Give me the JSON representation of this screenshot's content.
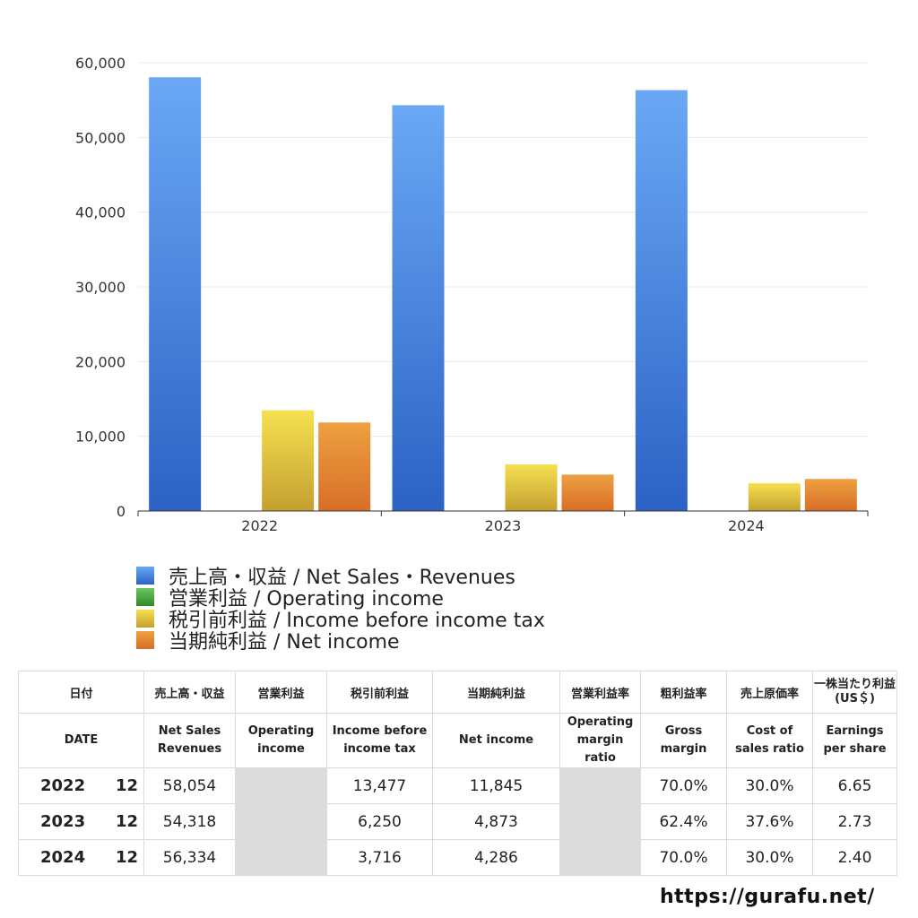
{
  "chart_data": {
    "type": "bar",
    "categories": [
      "2022",
      "2023",
      "2024"
    ],
    "ylim": [
      0,
      60000
    ],
    "yticks": [
      0,
      10000,
      20000,
      30000,
      40000,
      50000,
      60000
    ],
    "ytick_labels": [
      "0",
      "10,000",
      "20,000",
      "30,000",
      "40,000",
      "50,000",
      "60,000"
    ],
    "grid": true,
    "legend_position": "bottom",
    "series": [
      {
        "name": "売上高・収益 / Net Sales・Revenues",
        "values": [
          58054,
          54318,
          56334
        ],
        "color": "#3f7fe0"
      },
      {
        "name": "営業利益 / Operating income",
        "values": [
          null,
          null,
          null
        ],
        "color": "#4aa040"
      },
      {
        "name": "税引前利益 / Income before income tax",
        "values": [
          13477,
          6250,
          3716
        ],
        "color": "#e0c540"
      },
      {
        "name": "当期純利益 / Net income",
        "values": [
          11845,
          4873,
          4286
        ],
        "color": "#e07f30"
      }
    ]
  },
  "table": {
    "header_jp": [
      "日付",
      "売上高・収益",
      "営業利益",
      "税引前利益",
      "当期純利益",
      "営業利益率",
      "粗利益率",
      "売上原価率",
      "一株当たり利益",
      "(US＄)"
    ],
    "header_en": [
      "DATE",
      "Net Sales",
      "Revenues",
      "Operating",
      "income",
      "Income before",
      "income tax",
      "Net income",
      "Operating",
      "margin",
      "ratio",
      "Gross",
      "margin",
      "Cost of",
      "sales ratio",
      "Earnings",
      "per share"
    ],
    "rows": [
      {
        "year": "2022",
        "month": "12",
        "sales": "58,054",
        "operating": "",
        "pretax": "13,477",
        "net": "11,845",
        "op_margin": "",
        "gross": "70.0%",
        "cost": "30.0%",
        "eps": "6.65"
      },
      {
        "year": "2023",
        "month": "12",
        "sales": "54,318",
        "operating": "",
        "pretax": "6,250",
        "net": "4,873",
        "op_margin": "",
        "gross": "62.4%",
        "cost": "37.6%",
        "eps": "2.73"
      },
      {
        "year": "2024",
        "month": "12",
        "sales": "56,334",
        "operating": "",
        "pretax": "3,716",
        "net": "4,286",
        "op_margin": "",
        "gross": "70.0%",
        "cost": "30.0%",
        "eps": "2.40"
      }
    ]
  },
  "brand": "https://gurafu.net/"
}
